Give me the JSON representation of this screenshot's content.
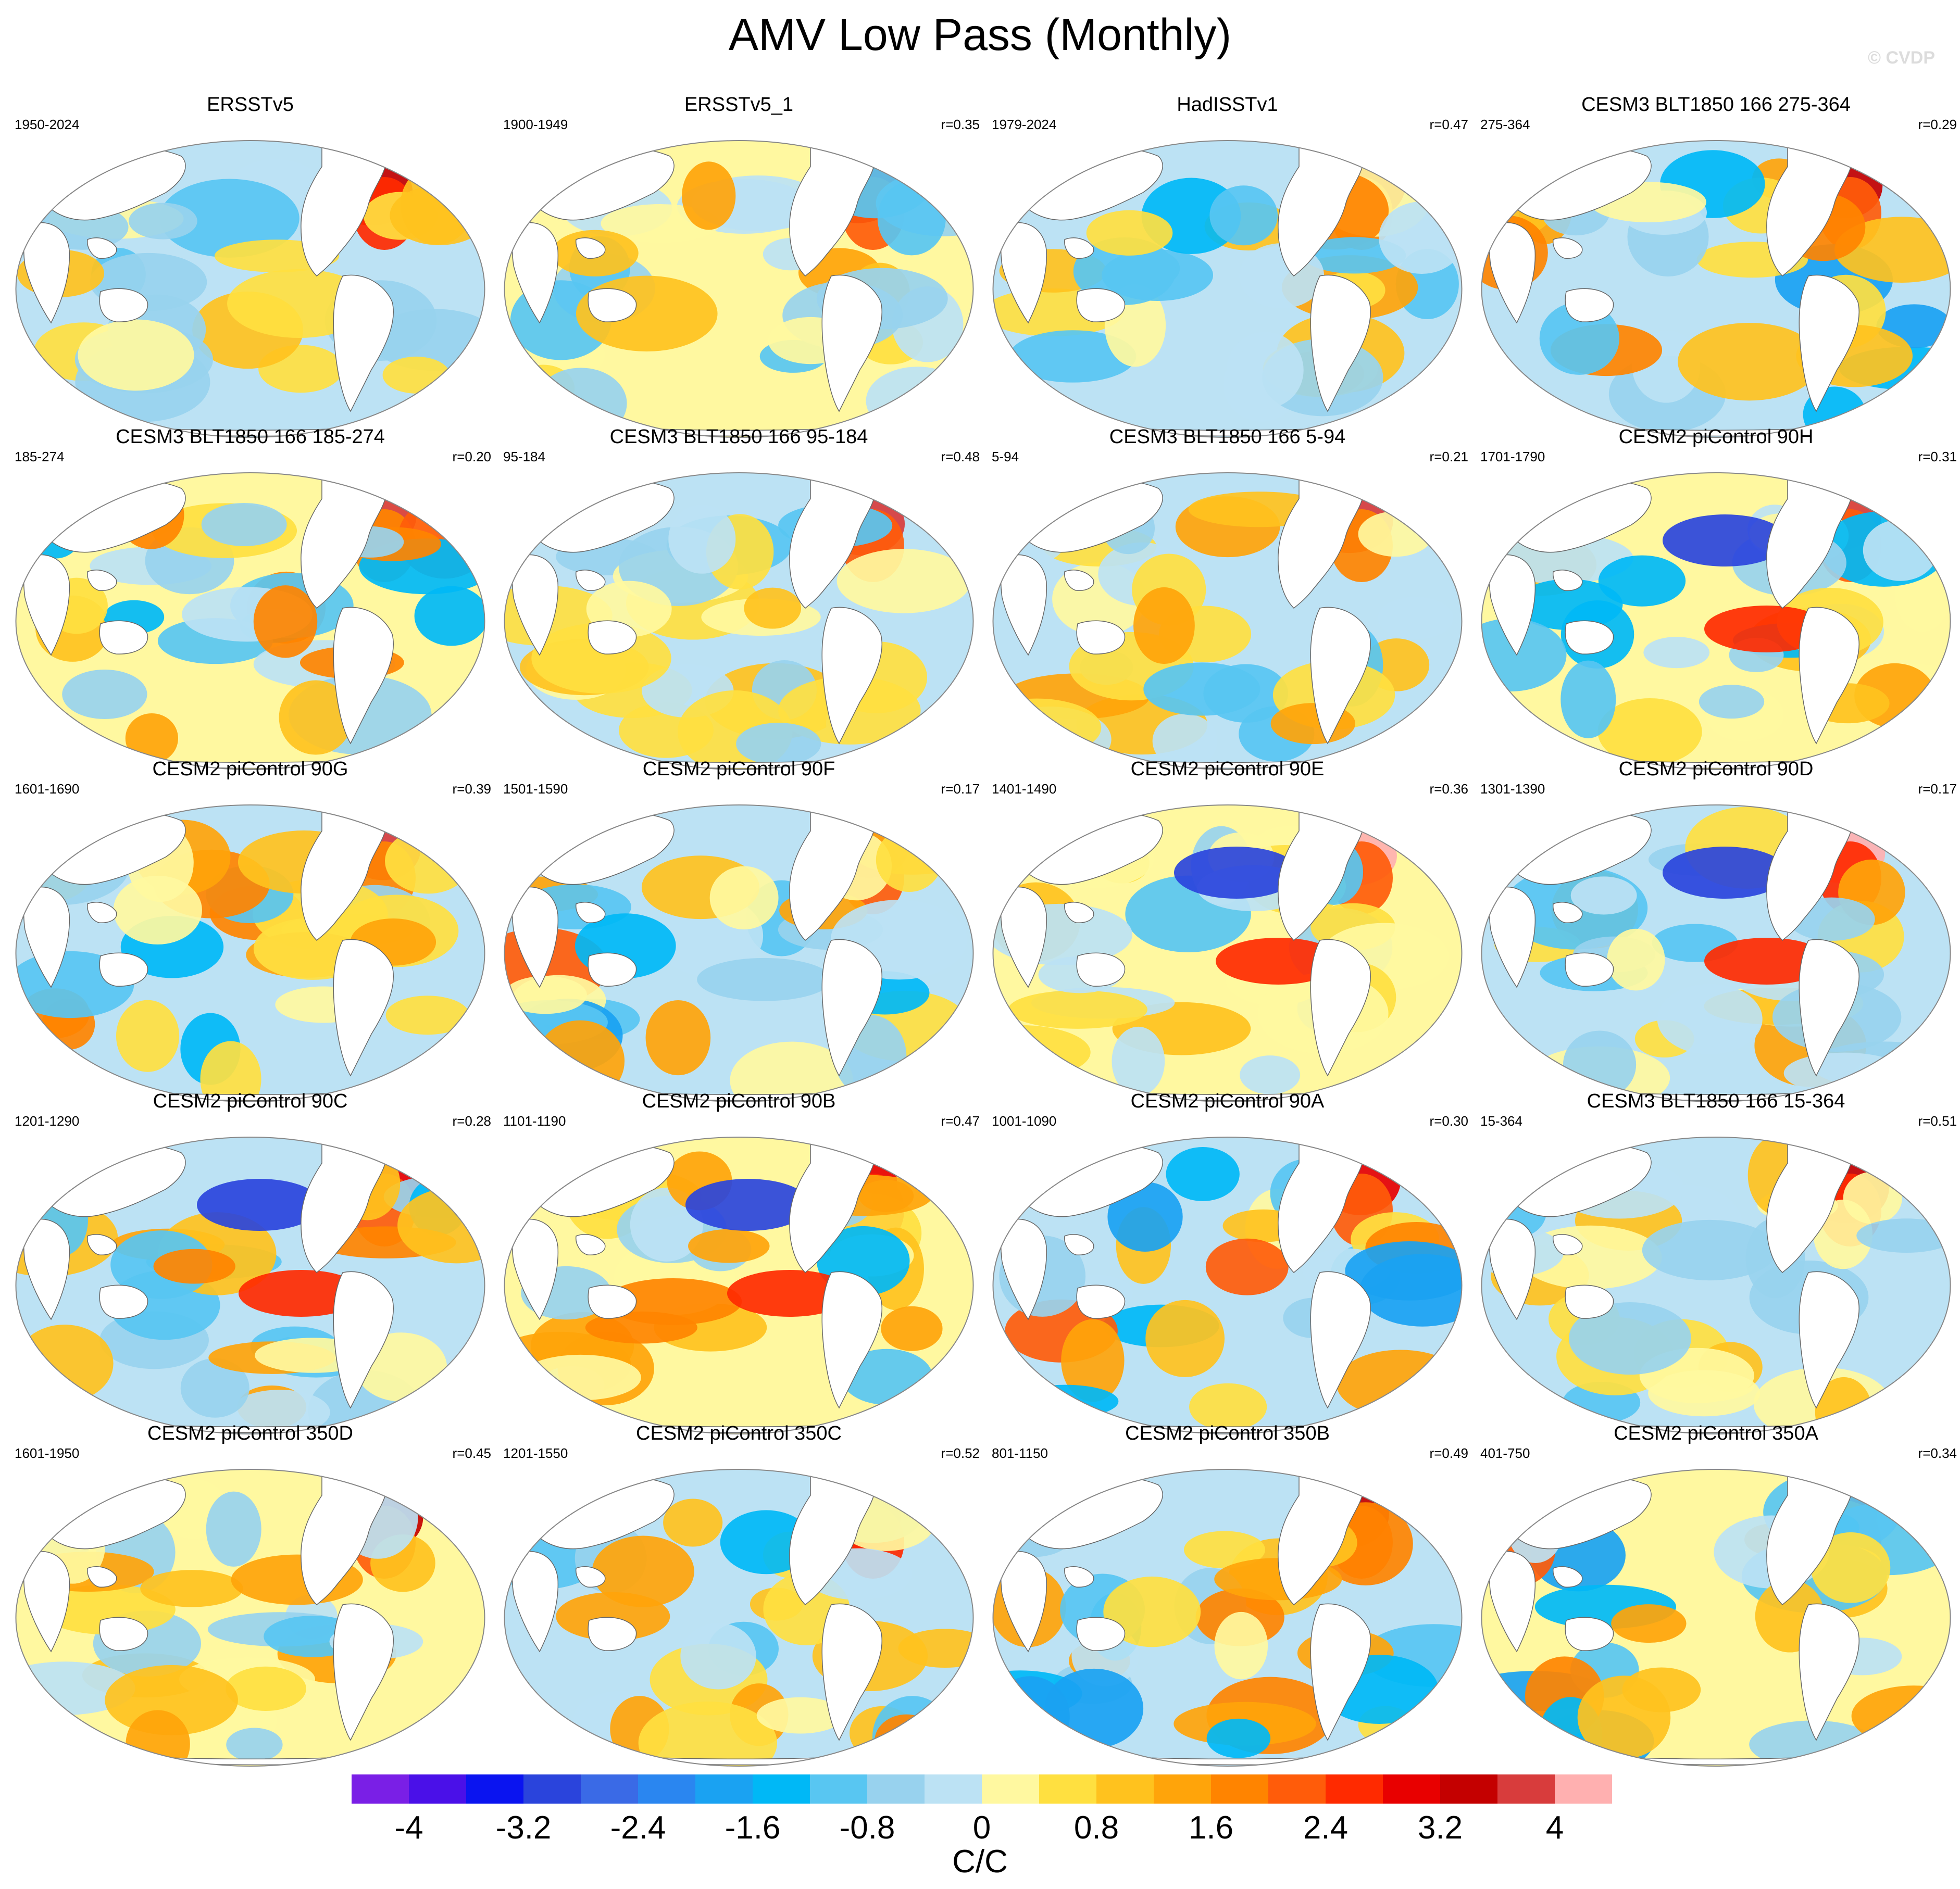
{
  "title": "AMV Low Pass (Monthly)",
  "watermark": "© CVDP",
  "panels": [
    {
      "title": "ERSSTv5",
      "period": "1950-2024",
      "r": "",
      "scheme": 0
    },
    {
      "title": "ERSSTv5_1",
      "period": "1900-1949",
      "r": "r=0.35",
      "scheme": 1
    },
    {
      "title": "HadISSTv1",
      "period": "1979-2024",
      "r": "r=0.47",
      "scheme": 2
    },
    {
      "title": "CESM3 BLT1850 166 275-364",
      "period": "275-364",
      "r": "r=0.29",
      "scheme": 3
    },
    {
      "title": "CESM3 BLT1850 166 185-274",
      "period": "185-274",
      "r": "r=0.20",
      "scheme": 4
    },
    {
      "title": "CESM3 BLT1850 166 95-184",
      "period": "95-184",
      "r": "r=0.48",
      "scheme": 5
    },
    {
      "title": "CESM3 BLT1850 166 5-94",
      "period": "5-94",
      "r": "r=0.21",
      "scheme": 6
    },
    {
      "title": "CESM2 piControl 90H",
      "period": "1701-1790",
      "r": "r=0.31",
      "scheme": 7
    },
    {
      "title": "CESM2 piControl 90G",
      "period": "1601-1690",
      "r": "r=0.39",
      "scheme": 8
    },
    {
      "title": "CESM2 piControl 90F",
      "period": "1501-1590",
      "r": "r=0.17",
      "scheme": 9
    },
    {
      "title": "CESM2 piControl 90E",
      "period": "1401-1490",
      "r": "r=0.36",
      "scheme": 10
    },
    {
      "title": "CESM2 piControl 90D",
      "period": "1301-1390",
      "r": "r=0.17",
      "scheme": 11
    },
    {
      "title": "CESM2 piControl 90C",
      "period": "1201-1290",
      "r": "r=0.28",
      "scheme": 12
    },
    {
      "title": "CESM2 piControl 90B",
      "period": "1101-1190",
      "r": "r=0.47",
      "scheme": 13
    },
    {
      "title": "CESM2 piControl 90A",
      "period": "1001-1090",
      "r": "r=0.30",
      "scheme": 14
    },
    {
      "title": "CESM3 BLT1850 166 15-364",
      "period": "15-364",
      "r": "r=0.51",
      "scheme": 15
    },
    {
      "title": "CESM2 piControl 350D",
      "period": "1601-1950",
      "r": "r=0.45",
      "scheme": 16
    },
    {
      "title": "CESM2 piControl 350C",
      "period": "1201-1550",
      "r": "r=0.52",
      "scheme": 17
    },
    {
      "title": "CESM2 piControl 350B",
      "period": "801-1150",
      "r": "r=0.49",
      "scheme": 18
    },
    {
      "title": "CESM2 piControl 350A",
      "period": "401-750",
      "r": "r=0.34",
      "scheme": 19
    }
  ],
  "colorbar": {
    "colors": [
      "#7a1fe6",
      "#4a10e8",
      "#0a14f0",
      "#2a44dc",
      "#3a6ae6",
      "#2a86f0",
      "#1aa2f2",
      "#00b8f6",
      "#58c6f2",
      "#98d2ee",
      "#bce2f4",
      "#fff8a0",
      "#ffe040",
      "#ffc21e",
      "#ffa40a",
      "#ff8400",
      "#ff5c0a",
      "#ff2a00",
      "#e80000",
      "#c40000",
      "#d83c3c",
      "#ffb0b0"
    ],
    "labels": [
      "-4",
      "-3.2",
      "-2.4",
      "-1.6",
      "-0.8",
      "0",
      "0.8",
      "1.6",
      "2.4",
      "3.2",
      "4"
    ],
    "label_index": [
      1,
      3,
      5,
      7,
      9,
      11,
      13,
      15,
      17,
      19,
      21
    ],
    "units": "C/C"
  }
}
